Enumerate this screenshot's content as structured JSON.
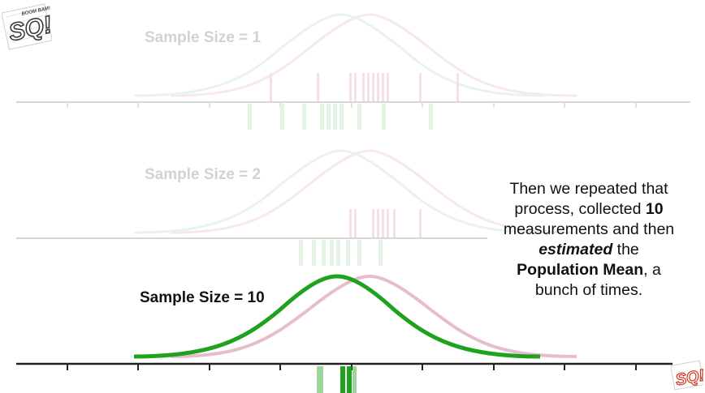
{
  "panels": [
    {
      "label": "Sample Size = 1",
      "state": "faded"
    },
    {
      "label": "Sample Size = 2",
      "state": "faded"
    },
    {
      "label": "Sample Size = 10",
      "state": "active"
    }
  ],
  "narration": {
    "line1": "Then we repeated that",
    "line2a": "process, collected ",
    "line2b": "10",
    "line3": "measurements and then",
    "line4a": "estimated",
    "line4b": " the",
    "line5a": "Population Mean",
    "line5b": ", a",
    "line6": "bunch of times."
  },
  "logo": {
    "text": "SQ!",
    "tagline": "BOOM BAM!"
  },
  "colors": {
    "population_curve": "#e8bccd",
    "estimated_curve": "#1fa31f",
    "axis": "#222222",
    "faded_axis": "#c8c8c8",
    "faded_text": "#d2d2d2"
  }
}
